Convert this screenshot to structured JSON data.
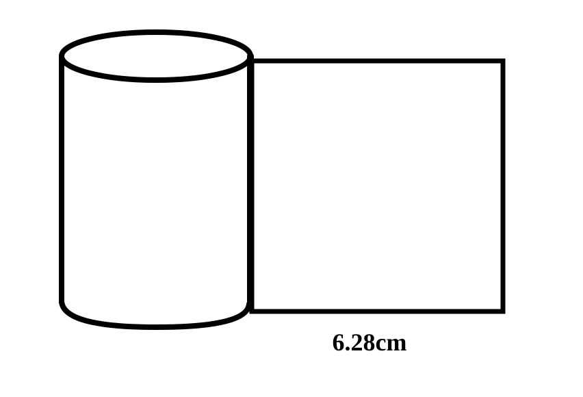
{
  "diagram": {
    "width_label": "6.28cm",
    "stroke_color": "#000000",
    "background_color": "#ffffff"
  }
}
